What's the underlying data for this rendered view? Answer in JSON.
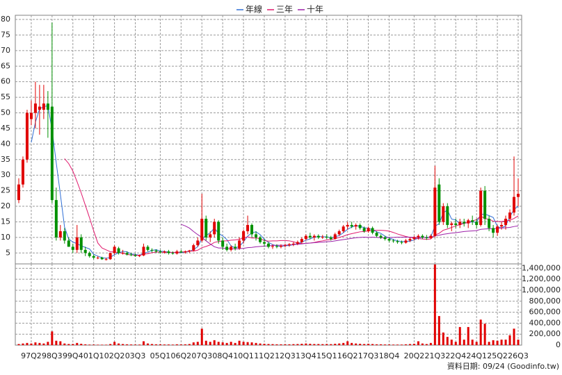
{
  "chart_data": [
    {
      "type": "candlestick",
      "legend": "top",
      "grid": true,
      "source": "資料日期: 09/24 (Goodinfo.tw)",
      "up_color": "#e00000",
      "down_color": "#009000",
      "ylim": [
        1.5,
        80
      ],
      "yticks": [
        5,
        10,
        15,
        20,
        25,
        30,
        35,
        40,
        45,
        50,
        55,
        60,
        65,
        70,
        75,
        80
      ],
      "categories": [
        null,
        null,
        null,
        "97Q2",
        null,
        null,
        null,
        null,
        "98Q3",
        null,
        null,
        null,
        null,
        "99Q4",
        null,
        null,
        null,
        null,
        "01Q1",
        null,
        null,
        null,
        null,
        "02Q2",
        null,
        null,
        null,
        null,
        "03Q3",
        null,
        null,
        null,
        null,
        null,
        "05Q1",
        null,
        null,
        null,
        null,
        "06Q2",
        null,
        null,
        null,
        null,
        "07Q3",
        null,
        null,
        null,
        null,
        "08Q4",
        null,
        null,
        null,
        null,
        "10Q1",
        null,
        null,
        null,
        null,
        "11Q2",
        null,
        null,
        null,
        null,
        "12Q3",
        null,
        null,
        null,
        null,
        "13Q4",
        null,
        null,
        null,
        null,
        "15Q1",
        null,
        null,
        null,
        null,
        "16Q2",
        null,
        null,
        null,
        null,
        "17Q3",
        null,
        null,
        null,
        null,
        "18Q4",
        null,
        null,
        null,
        null,
        null,
        "20Q2",
        null,
        null,
        null,
        null,
        "21Q3",
        null,
        null,
        null,
        null,
        "22Q4",
        null,
        null,
        null,
        null,
        "24Q1",
        null,
        null,
        null,
        null,
        "25Q2",
        null,
        null,
        null,
        null,
        "26Q3"
      ],
      "open": [
        22,
        27,
        35,
        48,
        50,
        51,
        51,
        53,
        52,
        22,
        10,
        12,
        9,
        7,
        6,
        10,
        6,
        5,
        4,
        3.5,
        3.5,
        3,
        3,
        5,
        6.5,
        5,
        5,
        4.5,
        4.3,
        4,
        4.2,
        7,
        6,
        5.8,
        5.5,
        5.2,
        5.5,
        5,
        4.8,
        5.5,
        5.2,
        5.5,
        5.8,
        7.5,
        9,
        16,
        10,
        11,
        15,
        9,
        7,
        6,
        7,
        6.5,
        9,
        12,
        14,
        11,
        10,
        8.5,
        8,
        7,
        7.2,
        7,
        7.3,
        7.5,
        7.8,
        8,
        8.5,
        9.5,
        10.5,
        10,
        10.5,
        10,
        10.2,
        10,
        9.5,
        11,
        12,
        13.5,
        14,
        13.5,
        14,
        13,
        12,
        13,
        11.5,
        10.5,
        10,
        9.5,
        9,
        8.8,
        8.5,
        8.3,
        9,
        9.5,
        10,
        10.5,
        10,
        9.8,
        10.5,
        27,
        15,
        20,
        14,
        14.5,
        14,
        15,
        14.5,
        15.5,
        15,
        14,
        25,
        16,
        13,
        11.5,
        13.5,
        14,
        16,
        18,
        23
      ],
      "high": [
        29,
        36,
        51,
        54,
        60,
        59,
        59,
        57,
        79,
        26,
        14,
        13,
        10,
        8,
        14,
        11,
        7,
        5.5,
        4.5,
        4,
        3.8,
        3.5,
        5,
        7.5,
        7,
        6,
        5.5,
        5,
        4.8,
        4.5,
        8,
        7.5,
        6.5,
        6.2,
        6,
        5.8,
        6,
        5.5,
        6,
        6,
        5.8,
        6,
        8,
        10,
        24,
        17,
        12,
        16,
        15.5,
        10,
        8,
        7.5,
        8,
        10,
        12.5,
        17,
        14.5,
        12,
        10.5,
        9.5,
        8.5,
        7.8,
        7.8,
        7.8,
        8,
        8.2,
        8.5,
        9,
        10,
        11,
        11.5,
        11,
        11,
        10.8,
        11,
        10.5,
        11.5,
        12.5,
        14,
        15,
        15,
        14.5,
        14.5,
        13.5,
        13.5,
        13.5,
        12,
        11,
        10.5,
        10,
        9.5,
        9.2,
        9,
        9.5,
        10,
        10.5,
        11,
        11,
        10.8,
        11,
        33,
        29,
        21,
        21,
        15,
        16,
        16,
        16,
        16,
        17,
        16,
        26,
        26.5,
        17,
        14,
        14,
        15,
        17,
        19,
        36,
        29
      ],
      "low": [
        21,
        26,
        34,
        46,
        45,
        43,
        48,
        42,
        21,
        9,
        9,
        8,
        7,
        5,
        5,
        5,
        4,
        3.5,
        3,
        3,
        2.8,
        2.6,
        2.8,
        4.5,
        4.5,
        4.5,
        4.2,
        4,
        3.8,
        3.7,
        4,
        5.5,
        5.2,
        5,
        4.8,
        4.8,
        4.5,
        4.5,
        4.5,
        5,
        4.8,
        5,
        5.5,
        7,
        8.5,
        9,
        8.5,
        10,
        8,
        6,
        5.5,
        5.5,
        5.8,
        6,
        8,
        11,
        10,
        9,
        8,
        7,
        6.5,
        6.3,
        6.5,
        6.5,
        6.8,
        7,
        7.2,
        7.5,
        8,
        9,
        9.5,
        9,
        9.5,
        9.5,
        9.5,
        9,
        9.3,
        10.5,
        11.5,
        12.5,
        13,
        12.5,
        12.5,
        11.5,
        11.5,
        11,
        10,
        9.5,
        9,
        8.5,
        8.3,
        8,
        7.8,
        8,
        8.5,
        9,
        9.3,
        9.5,
        9.2,
        9.5,
        10,
        14,
        14,
        13,
        12,
        13,
        13,
        13.5,
        13,
        14,
        13,
        13.5,
        14,
        12,
        10,
        10.5,
        12.5,
        12.5,
        15,
        17,
        20
      ],
      "close": [
        27,
        35,
        50,
        50,
        53,
        52,
        53,
        51,
        22,
        10,
        12,
        9,
        7,
        6,
        10,
        6,
        5,
        4,
        3.5,
        3.5,
        3,
        3,
        5,
        7,
        5,
        5,
        4.5,
        4.3,
        4,
        4.2,
        7,
        6,
        5.8,
        5.5,
        5.2,
        5.5,
        5,
        4.8,
        5.5,
        5.2,
        5.5,
        5.8,
        7.5,
        9,
        16,
        10,
        11,
        15,
        9,
        7,
        6,
        7,
        6.5,
        9,
        12,
        14,
        11,
        10,
        8.5,
        8,
        7,
        7.2,
        7,
        7.3,
        7.5,
        7.8,
        8,
        8.5,
        9.5,
        10.5,
        10,
        10.5,
        10,
        10.2,
        10,
        9.5,
        11,
        12,
        13.5,
        14,
        13.5,
        14,
        13,
        12,
        13,
        11.5,
        10.5,
        10,
        9.5,
        9,
        8.8,
        8.5,
        8.3,
        9,
        9.5,
        10,
        10.5,
        10,
        9.8,
        10.5,
        26,
        15,
        20,
        14,
        14.5,
        14,
        15,
        14.5,
        15.5,
        15,
        14,
        25,
        16,
        13,
        11.5,
        13.5,
        14,
        16,
        18,
        23,
        24
      ],
      "series": [
        {
          "name": "年線",
          "color": "#2f6fd6",
          "values": [
            null,
            null,
            null,
            40.5,
            47,
            51.3,
            52,
            52.3,
            44.5,
            34,
            23.8,
            13.3,
            9.5,
            8.5,
            8,
            7.3,
            6.8,
            6.3,
            4.6,
            4,
            3.5,
            3.3,
            3.6,
            4.5,
            5,
            5.5,
            5.4,
            4.7,
            4.5,
            4.3,
            4.9,
            5.3,
            5.8,
            6.1,
            5.6,
            5.5,
            5.3,
            5.1,
            5.2,
            5.1,
            5.3,
            5.5,
            6.1,
            7,
            9.6,
            10.6,
            11.5,
            13,
            11.3,
            10.5,
            9.3,
            7.3,
            6.6,
            7.1,
            8.6,
            10.4,
            11.5,
            11.8,
            10.9,
            9.4,
            8.4,
            7.7,
            7.3,
            7.1,
            7.3,
            7.4,
            7.7,
            8,
            8.5,
            9.1,
            9.5,
            10.1,
            10.3,
            10.2,
            10.2,
            9.9,
            10.2,
            10.6,
            11.5,
            12.6,
            13.3,
            13.8,
            13.6,
            13.1,
            13,
            12.4,
            11.8,
            11.3,
            10.4,
            9.8,
            9.3,
            8.9,
            8.7,
            8.7,
            8.8,
            9.2,
            9.8,
            10,
            10,
            10.2,
            13.6,
            14.4,
            17.9,
            18.8,
            15.9,
            15.6,
            14.4,
            14.5,
            14.8,
            15,
            14.8,
            17.4,
            17.5,
            17,
            16.4,
            13.5,
            13,
            13.8,
            16.6,
            19,
            20
          ]
        },
        {
          "name": "三年",
          "color": "#e0186c",
          "values": [
            null,
            null,
            null,
            null,
            null,
            null,
            null,
            null,
            null,
            null,
            null,
            35.3,
            33.7,
            31.3,
            27.9,
            24.3,
            20.3,
            16.3,
            12.1,
            8.2,
            6.6,
            6,
            5.4,
            5.3,
            5.1,
            5,
            4.5,
            4.4,
            4.3,
            4.3,
            4.6,
            4.8,
            5.1,
            5.3,
            5.3,
            5.2,
            5.2,
            5.2,
            5.2,
            5.3,
            5.4,
            5.6,
            5.6,
            5.9,
            6.7,
            7.1,
            7.6,
            8.4,
            8.7,
            8.9,
            8.9,
            9.1,
            9.2,
            9.4,
            9.8,
            10.2,
            9.8,
            9.8,
            9.6,
            9,
            8.8,
            8.9,
            8.9,
            9,
            9,
            8.9,
            8.6,
            8.2,
            8,
            8.1,
            8.2,
            8.4,
            8.7,
            8.9,
            9.2,
            9.3,
            9.6,
            10,
            10.4,
            10.9,
            11.2,
            11.5,
            11.8,
            11.9,
            12.1,
            12.3,
            12.3,
            12.3,
            12.2,
            12,
            11.6,
            11.1,
            10.7,
            10.3,
            10,
            9.8,
            9.6,
            9.5,
            9.4,
            9.5,
            10.8,
            11.3,
            12.3,
            12.7,
            13.2,
            13.7,
            14.1,
            14.5,
            14.9,
            15.3,
            15.7,
            16.9,
            16,
            15.9,
            15.2,
            15.1,
            15.1,
            15.3,
            15.5,
            16.1,
            16.9
          ]
        },
        {
          "name": "十年",
          "color": "#9c1fa8",
          "values": [
            null,
            null,
            null,
            null,
            null,
            null,
            null,
            null,
            null,
            null,
            null,
            null,
            null,
            null,
            null,
            null,
            null,
            null,
            null,
            null,
            null,
            null,
            null,
            null,
            null,
            null,
            null,
            null,
            null,
            null,
            null,
            null,
            null,
            null,
            null,
            null,
            null,
            null,
            null,
            14.2,
            13.7,
            13,
            11.9,
            10.9,
            10,
            8.9,
            7.9,
            7,
            6.6,
            6.6,
            6.4,
            6.4,
            6.3,
            6.4,
            6.5,
            6.7,
            6.8,
            7,
            7.1,
            7.2,
            7.3,
            7.4,
            7.5,
            7.5,
            7.5,
            7.6,
            7.7,
            7.8,
            7.9,
            8.1,
            8.2,
            8.3,
            8.4,
            8.5,
            8.6,
            8.7,
            8.9,
            9.1,
            9.3,
            9.5,
            9.7,
            9.9,
            10,
            10.1,
            10,
            10.1,
            10,
            9.9,
            9.9,
            10,
            10,
            10.1,
            10.1,
            10.1,
            10.1,
            10,
            10,
            10,
            10,
            10,
            10.5,
            10.7,
            11,
            11.2,
            11.4,
            11.5,
            11.7,
            11.9,
            12,
            12.1,
            12.2,
            12.6,
            12.7,
            12.8,
            12.8,
            12.9,
            13,
            13.1,
            13.2,
            13.5,
            13.7
          ]
        }
      ]
    },
    {
      "type": "bar",
      "grid": true,
      "color": "#e00000",
      "ylim": [
        0,
        1480000
      ],
      "yticks": [
        0,
        {
          "value": 200000,
          "label": "200,000"
        },
        {
          "value": 400000,
          "label": "400,000"
        },
        {
          "value": 600000,
          "label": "600,000"
        },
        {
          "value": 800000,
          "label": "800,000"
        },
        {
          "value": 1000000,
          "label": "1,000,000"
        },
        {
          "value": 1200000,
          "label": "1,200,000"
        },
        {
          "value": 1400000,
          "label": "1,400,000"
        }
      ],
      "values": [
        20000,
        30000,
        40000,
        30000,
        50000,
        40000,
        30000,
        60000,
        250000,
        80000,
        70000,
        30000,
        20000,
        20000,
        40000,
        25000,
        15000,
        10000,
        10000,
        8000,
        8000,
        8000,
        20000,
        60000,
        30000,
        20000,
        15000,
        12000,
        10000,
        10000,
        70000,
        30000,
        20000,
        15000,
        15000,
        12000,
        12000,
        10000,
        15000,
        12000,
        15000,
        20000,
        50000,
        60000,
        300000,
        80000,
        60000,
        90000,
        60000,
        50000,
        40000,
        60000,
        40000,
        80000,
        60000,
        55000,
        50000,
        40000,
        30000,
        25000,
        20000,
        18000,
        15000,
        15000,
        15000,
        15000,
        18000,
        20000,
        25000,
        30000,
        25000,
        20000,
        20000,
        18000,
        20000,
        18000,
        25000,
        30000,
        40000,
        70000,
        40000,
        30000,
        25000,
        20000,
        25000,
        20000,
        15000,
        15000,
        12000,
        12000,
        10000,
        10000,
        10000,
        15000,
        20000,
        25000,
        70000,
        30000,
        20000,
        40000,
        1470000,
        530000,
        230000,
        150000,
        100000,
        60000,
        330000,
        100000,
        330000,
        100000,
        60000,
        465000,
        390000,
        60000,
        90000,
        80000,
        100000,
        100000,
        180000,
        300000,
        100000
      ]
    }
  ]
}
